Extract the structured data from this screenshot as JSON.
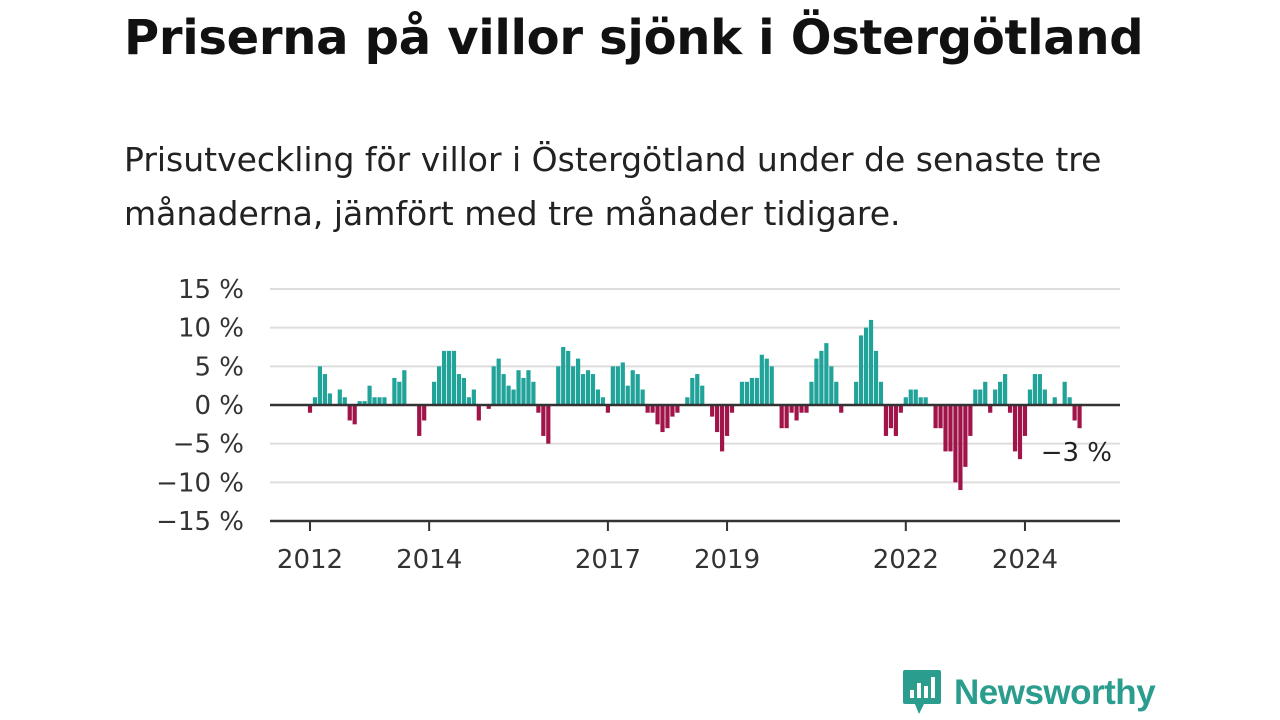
{
  "title": "Priserna på villor sjönk i Östergötland",
  "subtitle": "Prisutveckling för villor i Östergötland under de senaste tre månaderna, jämfört med tre månader tidigare.",
  "brand": {
    "name": "Newsworthy",
    "icon": "newsworthy-logo-icon",
    "color": "#2a9d8f"
  },
  "chart_data": {
    "type": "bar",
    "ylim": [
      -15,
      15
    ],
    "yticks": [
      15,
      10,
      5,
      0,
      -5,
      -10,
      -15
    ],
    "ytick_labels": [
      "15 %",
      "10 %",
      "5 %",
      "0 %",
      "−5 %",
      "−10 %",
      "−15 %"
    ],
    "xtick_labels": [
      {
        "label": "2012",
        "index": 0
      },
      {
        "label": "2014",
        "index": 24
      },
      {
        "label": "2017",
        "index": 60
      },
      {
        "label": "2019",
        "index": 84
      },
      {
        "label": "2022",
        "index": 120
      },
      {
        "label": "2024",
        "index": 144
      }
    ],
    "start": "2012-01",
    "frequency": "monthly",
    "positive_color": "#21a39a",
    "negative_color": "#a0144a",
    "grid": true,
    "annotation": {
      "text": "−3 %",
      "index": 154,
      "value": -3
    },
    "values": [
      -1,
      1,
      5,
      4,
      1.5,
      0,
      2,
      1,
      -2,
      -2.5,
      0.5,
      0.5,
      2.5,
      1,
      1,
      1,
      0,
      3.5,
      3,
      4.5,
      0,
      0,
      -4,
      -2,
      0,
      3,
      5,
      7,
      7,
      7,
      4,
      3.5,
      1,
      2,
      -2,
      0,
      -0.5,
      5,
      6,
      4,
      2.5,
      2,
      4.5,
      3.5,
      4.5,
      3,
      -1,
      -4,
      -5,
      0,
      5,
      7.5,
      7,
      5,
      6,
      4,
      4.5,
      4,
      2,
      1,
      -1,
      5,
      5,
      5.5,
      2.5,
      4.5,
      4,
      2,
      -1,
      -1,
      -2.5,
      -3.5,
      -3,
      -1.5,
      -1,
      0,
      1,
      3.5,
      4,
      2.5,
      0,
      -1.5,
      -3.5,
      -6,
      -4,
      -1,
      0,
      3,
      3,
      3.5,
      3.5,
      6.5,
      6,
      5,
      0,
      -3,
      -3,
      -1,
      -2,
      -1,
      -1,
      3,
      6,
      7,
      8,
      5,
      3,
      -1,
      0,
      0,
      3,
      9,
      10,
      11,
      7,
      3,
      -4,
      -3,
      -4,
      -1,
      1,
      2,
      2,
      1,
      1,
      0,
      -3,
      -3,
      -6,
      -6,
      -10,
      -11,
      -8,
      -4,
      2,
      2,
      3,
      -1,
      2,
      3,
      4,
      -1,
      -6,
      -7,
      -4,
      2,
      4,
      4,
      2,
      0,
      1,
      0,
      3,
      1,
      -2,
      -3
    ]
  }
}
